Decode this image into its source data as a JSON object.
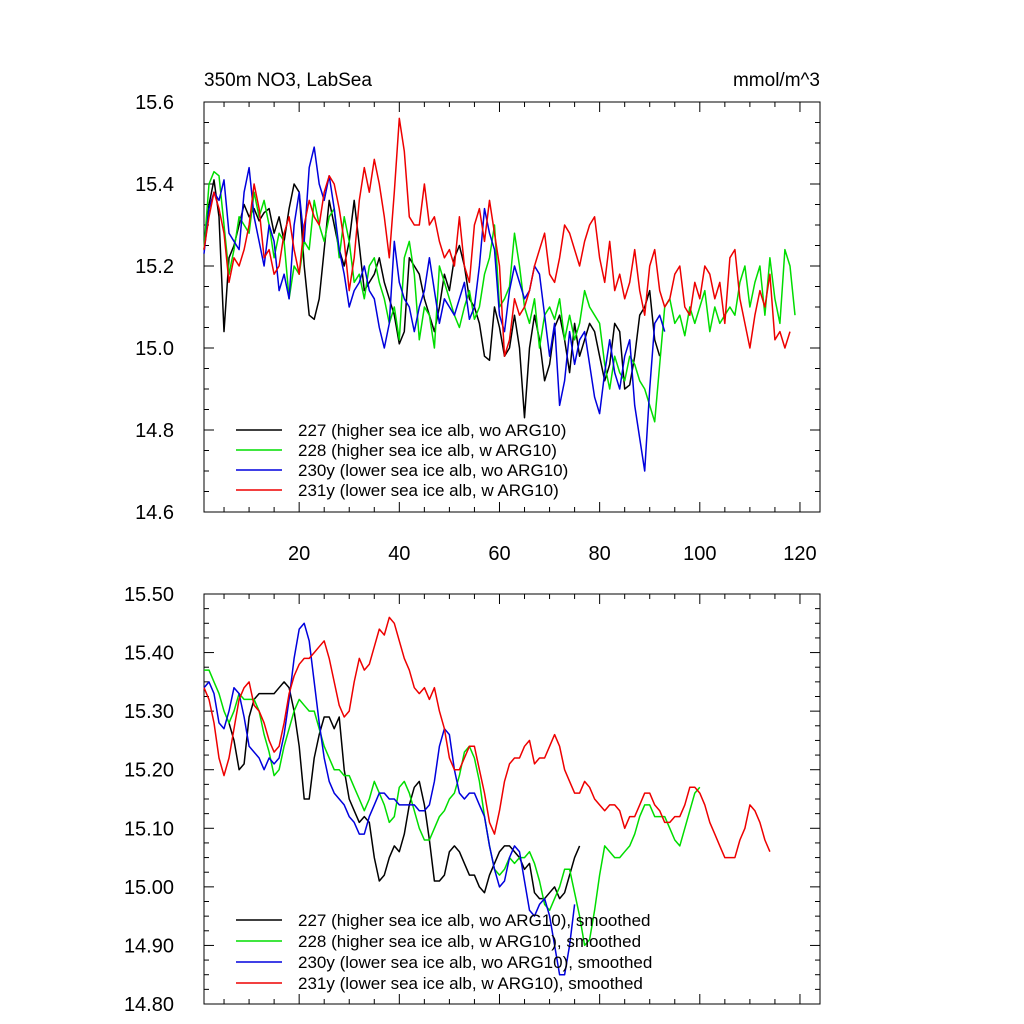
{
  "chart_data": [
    {
      "type": "line",
      "title_left": "350m NO3, LabSea",
      "title_right": "mmol/m^3",
      "xlim": [
        1,
        124
      ],
      "ylim": [
        14.6,
        15.6
      ],
      "yticks": [
        14.6,
        14.8,
        15.0,
        15.2,
        15.4,
        15.6
      ],
      "ytick_labels": [
        "14.6",
        "14.8",
        "15.0",
        "15.2",
        "15.4",
        "15.6"
      ],
      "xticks": [
        20,
        40,
        60,
        80,
        100,
        120
      ],
      "xtick_labels": [
        "20",
        "40",
        "60",
        "80",
        "100",
        "120"
      ],
      "series": [
        {
          "name": "227 (higher sea ice alb, wo ARG10)",
          "color": "#000000",
          "start": 1,
          "values": [
            15.24,
            15.35,
            15.41,
            15.32,
            15.04,
            15.22,
            15.25,
            15.3,
            15.35,
            15.32,
            15.34,
            15.31,
            15.33,
            15.34,
            15.28,
            15.32,
            15.26,
            15.34,
            15.4,
            15.38,
            15.2,
            15.08,
            15.07,
            15.12,
            15.24,
            15.36,
            15.3,
            15.24,
            15.2,
            15.26,
            15.36,
            15.25,
            15.14,
            15.16,
            15.18,
            15.22,
            15.16,
            15.12,
            15.08,
            15.01,
            15.04,
            15.22,
            15.2,
            15.18,
            15.12,
            15.08,
            15.04,
            15.1,
            15.18,
            15.14,
            15.22,
            15.25,
            15.2,
            15.12,
            15.1,
            15.06,
            14.98,
            14.97,
            15.1,
            15.05,
            14.98,
            15.0,
            15.08,
            15.0,
            14.83,
            15.0,
            15.08,
            15.02,
            14.92,
            14.96,
            15.05,
            15.08,
            15.02,
            14.94,
            15.06,
            14.98,
            15.02,
            15.06,
            15.04,
            14.98,
            14.92,
            14.96,
            15.06,
            15.04,
            14.9,
            14.91,
            14.98,
            15.08,
            15.1,
            15.14,
            15.02,
            14.98
          ]
        },
        {
          "name": "228 (higher sea ice alb, w ARG10)",
          "color": "#00dd00",
          "start": 1,
          "values": [
            15.24,
            15.4,
            15.43,
            15.42,
            15.3,
            15.18,
            15.24,
            15.32,
            15.3,
            15.28,
            15.38,
            15.32,
            15.36,
            15.3,
            15.22,
            15.28,
            15.26,
            15.12,
            15.2,
            15.18,
            15.26,
            15.24,
            15.36,
            15.3,
            15.26,
            15.32,
            15.34,
            15.22,
            15.32,
            15.26,
            15.16,
            15.18,
            15.12,
            15.2,
            15.22,
            15.16,
            15.12,
            15.06,
            15.1,
            15.02,
            15.22,
            15.26,
            15.18,
            15.02,
            15.1,
            15.08,
            15.0,
            15.2,
            15.16,
            15.12,
            15.08,
            15.05,
            15.1,
            15.14,
            15.07,
            15.1,
            15.18,
            15.22,
            15.3,
            15.1,
            15.12,
            15.15,
            15.28,
            15.2,
            15.1,
            15.06,
            15.12,
            15.0,
            15.08,
            15.1,
            15.07,
            15.12,
            15.02,
            15.08,
            15.02,
            15.06,
            15.14,
            15.1,
            15.08,
            15.06,
            14.96,
            14.9,
            14.98,
            14.94,
            14.92,
            14.98,
            14.96,
            14.92,
            14.9,
            14.86,
            14.82,
            14.96,
            15.1,
            15.12,
            15.06,
            15.08,
            15.03,
            15.1,
            15.06,
            15.1,
            15.14,
            15.04,
            15.1,
            15.06,
            15.08,
            15.1,
            15.08,
            15.16,
            15.2,
            15.1,
            15.16,
            15.2,
            15.08,
            15.22,
            15.12,
            15.06,
            15.24,
            15.2,
            15.08
          ]
        },
        {
          "name": "230y (lower sea ice alb, wo ARG10)",
          "color": "#0000dd",
          "start": 1,
          "values": [
            15.23,
            15.34,
            15.38,
            15.36,
            15.41,
            15.28,
            15.26,
            15.24,
            15.38,
            15.44,
            15.32,
            15.26,
            15.2,
            15.3,
            15.26,
            15.14,
            15.18,
            15.12,
            15.3,
            15.38,
            15.26,
            15.44,
            15.49,
            15.4,
            15.36,
            15.42,
            15.34,
            15.24,
            15.18,
            15.1,
            15.14,
            15.16,
            15.2,
            15.14,
            15.12,
            15.05,
            15.0,
            15.06,
            15.26,
            15.16,
            15.12,
            15.1,
            15.04,
            15.1,
            15.14,
            15.22,
            15.14,
            15.06,
            15.12,
            15.1,
            15.08,
            15.12,
            15.16,
            15.07,
            15.1,
            15.2,
            15.34,
            15.28,
            15.24,
            15.08,
            15.04,
            15.14,
            15.2,
            15.16,
            15.12,
            15.14,
            15.2,
            15.18,
            15.08,
            14.98,
            15.06,
            14.86,
            14.92,
            15.04,
            14.96,
            15.02,
            15.04,
            14.96,
            14.88,
            14.84,
            14.94,
            15.02,
            14.94,
            14.9,
            14.98,
            15.02,
            14.86,
            14.78,
            14.7,
            14.9,
            15.06,
            15.08,
            15.04
          ]
        },
        {
          "name": "231y (lower sea ice alb, w ARG10)",
          "color": "#ee0000",
          "start": 1,
          "values": [
            15.24,
            15.32,
            15.38,
            15.34,
            15.28,
            15.16,
            15.22,
            15.2,
            15.24,
            15.3,
            15.4,
            15.34,
            15.22,
            15.24,
            15.18,
            15.2,
            15.28,
            15.32,
            15.24,
            15.18,
            15.3,
            15.36,
            15.32,
            15.3,
            15.38,
            15.42,
            15.4,
            15.34,
            15.26,
            15.14,
            15.22,
            15.36,
            15.44,
            15.38,
            15.46,
            15.4,
            15.32,
            15.22,
            15.38,
            15.56,
            15.48,
            15.32,
            15.3,
            15.3,
            15.4,
            15.3,
            15.32,
            15.26,
            15.22,
            15.24,
            15.2,
            15.32,
            15.2,
            15.16,
            15.3,
            15.34,
            15.26,
            15.36,
            15.28,
            15.2,
            14.98,
            15.02,
            15.12,
            15.08,
            15.1,
            15.14,
            15.2,
            15.24,
            15.28,
            15.18,
            15.16,
            15.22,
            15.3,
            15.28,
            15.24,
            15.2,
            15.26,
            15.3,
            15.32,
            15.22,
            15.16,
            15.26,
            15.14,
            15.18,
            15.12,
            15.16,
            15.24,
            15.14,
            15.08,
            15.2,
            15.24,
            15.14,
            15.1,
            15.12,
            15.18,
            15.2,
            15.1,
            15.08,
            15.16,
            15.12,
            15.2,
            15.18,
            15.12,
            15.16,
            15.06,
            15.22,
            15.24,
            15.12,
            15.06,
            15.0,
            15.08,
            15.14,
            15.1,
            15.18,
            15.02,
            15.04,
            15.0,
            15.04
          ]
        }
      ],
      "legend_position": "bottom-left"
    },
    {
      "type": "line",
      "xlim": [
        1,
        124
      ],
      "ylim": [
        14.8,
        15.5
      ],
      "yticks": [
        14.8,
        14.9,
        15.0,
        15.1,
        15.2,
        15.3,
        15.4,
        15.5
      ],
      "ytick_labels": [
        "14.80",
        "14.90",
        "15.00",
        "15.10",
        "15.20",
        "15.30",
        "15.40",
        "15.50"
      ],
      "xticks": [
        20,
        40,
        60,
        80,
        100,
        120
      ],
      "series": [
        {
          "name": "227 (higher sea ice alb, wo ARG10), smoothed",
          "color": "#000000",
          "start": 6,
          "values": [
            15.28,
            15.25,
            15.2,
            15.21,
            15.29,
            15.32,
            15.33,
            15.33,
            15.33,
            15.33,
            15.34,
            15.35,
            15.34,
            15.3,
            15.24,
            15.15,
            15.15,
            15.22,
            15.26,
            15.29,
            15.29,
            15.27,
            15.29,
            15.2,
            15.15,
            15.13,
            15.11,
            15.12,
            15.11,
            15.05,
            15.01,
            15.02,
            15.05,
            15.07,
            15.06,
            15.09,
            15.14,
            15.17,
            15.18,
            15.14,
            15.08,
            15.01,
            15.01,
            15.02,
            15.06,
            15.07,
            15.06,
            15.04,
            15.02,
            15.02,
            15.0,
            14.99,
            15.02,
            15.04,
            15.06,
            15.07,
            15.07,
            15.06,
            15.05,
            15.03,
            15.04,
            14.99,
            14.98,
            14.98,
            14.99,
            15.0,
            14.98,
            14.99,
            15.02,
            15.05,
            15.07
          ]
        },
        {
          "name": "228 (higher sea ice alb, w ARG10), smoothed",
          "color": "#00dd00",
          "start": 1,
          "values": [
            15.37,
            15.37,
            15.35,
            15.33,
            15.3,
            15.28,
            15.3,
            15.33,
            15.32,
            15.32,
            15.32,
            15.3,
            15.26,
            15.23,
            15.19,
            15.2,
            15.24,
            15.27,
            15.3,
            15.32,
            15.31,
            15.3,
            15.3,
            15.27,
            15.24,
            15.22,
            15.2,
            15.2,
            15.19,
            15.19,
            15.17,
            15.15,
            15.13,
            15.15,
            15.18,
            15.16,
            15.14,
            15.11,
            15.12,
            15.17,
            15.18,
            15.16,
            15.13,
            15.1,
            15.08,
            15.08,
            15.1,
            15.12,
            15.13,
            15.15,
            15.16,
            15.19,
            15.23,
            15.24,
            15.22,
            15.18,
            15.12,
            15.07,
            15.03,
            15.02,
            15.03,
            15.05,
            15.04,
            15.05,
            15.05,
            15.06,
            15.04,
            15.01,
            14.97,
            14.96,
            14.98,
            15.0,
            15.03,
            15.03,
            14.99,
            14.95,
            14.9,
            14.91,
            14.96,
            15.02,
            15.07,
            15.06,
            15.05,
            15.05,
            15.06,
            15.07,
            15.09,
            15.12,
            15.14,
            15.14,
            15.12,
            15.12,
            15.12,
            15.1,
            15.08,
            15.07,
            15.1,
            15.13,
            15.16,
            15.17
          ]
        },
        {
          "name": "230y (lower sea ice alb, wo ARG10), smoothed",
          "color": "#0000dd",
          "start": 1,
          "values": [
            15.34,
            15.35,
            15.33,
            15.28,
            15.27,
            15.3,
            15.34,
            15.33,
            15.29,
            15.24,
            15.23,
            15.22,
            15.2,
            15.22,
            15.21,
            15.22,
            15.26,
            15.32,
            15.39,
            15.44,
            15.45,
            15.42,
            15.35,
            15.28,
            15.22,
            15.18,
            15.16,
            15.15,
            15.14,
            15.12,
            15.11,
            15.09,
            15.09,
            15.12,
            15.14,
            15.16,
            15.16,
            15.15,
            15.15,
            15.14,
            15.14,
            15.14,
            15.14,
            15.13,
            15.13,
            15.14,
            15.18,
            15.24,
            15.27,
            15.26,
            15.2,
            15.16,
            15.15,
            15.16,
            15.16,
            15.14,
            15.12,
            15.07,
            15.03,
            15.0,
            15.01,
            15.05,
            15.07,
            15.06,
            15.01,
            14.96,
            14.95,
            14.97,
            14.98,
            14.95,
            14.9,
            14.85,
            14.85,
            14.9,
            14.97
          ]
        },
        {
          "name": "231y (lower sea ice alb, w ARG10), smoothed",
          "color": "#ee0000",
          "start": 1,
          "values": [
            15.34,
            15.32,
            15.28,
            15.22,
            15.19,
            15.22,
            15.27,
            15.32,
            15.34,
            15.35,
            15.31,
            15.3,
            15.28,
            15.25,
            15.23,
            15.24,
            15.28,
            15.33,
            15.36,
            15.38,
            15.39,
            15.39,
            15.4,
            15.41,
            15.42,
            15.39,
            15.35,
            15.31,
            15.29,
            15.3,
            15.35,
            15.39,
            15.37,
            15.38,
            15.41,
            15.44,
            15.43,
            15.46,
            15.45,
            15.42,
            15.39,
            15.37,
            15.34,
            15.33,
            15.34,
            15.32,
            15.34,
            15.3,
            15.27,
            15.22,
            15.2,
            15.2,
            15.22,
            15.24,
            15.24,
            15.2,
            15.16,
            15.11,
            15.09,
            15.13,
            15.18,
            15.21,
            15.22,
            15.22,
            15.24,
            15.25,
            15.21,
            15.22,
            15.22,
            15.24,
            15.26,
            15.24,
            15.2,
            15.18,
            15.16,
            15.16,
            15.18,
            15.17,
            15.15,
            15.14,
            15.13,
            15.14,
            15.14,
            15.13,
            15.1,
            15.12,
            15.12,
            15.14,
            15.16,
            15.16,
            15.14,
            15.13,
            15.11,
            15.11,
            15.12,
            15.12,
            15.14,
            15.17,
            15.17,
            15.16,
            15.14,
            15.11,
            15.09,
            15.07,
            15.05,
            15.05,
            15.05,
            15.08,
            15.1,
            15.14,
            15.13,
            15.11,
            15.08,
            15.06
          ]
        }
      ],
      "legend_position": "bottom-left"
    }
  ]
}
